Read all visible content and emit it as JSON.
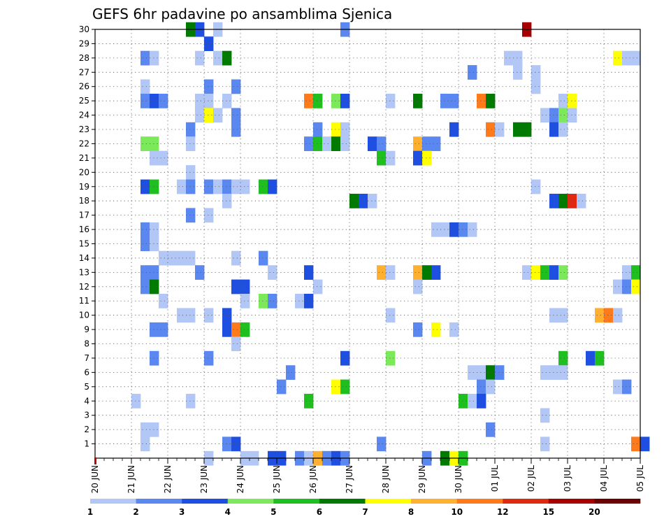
{
  "chart_data": {
    "type": "heatmap",
    "title": "GEFS 6hr padavine po ansamblima Sjenica",
    "xlabel": "",
    "ylabel": "",
    "x_tick_labels": [
      "20 JUN",
      "21 JUN",
      "22 JUN",
      "23 JUN",
      "24 JUN",
      "25 JUN",
      "26 JUN",
      "27 JUN",
      "28 JUN",
      "29 JUN",
      "30 JUN",
      "01 JUL",
      "02 JUL",
      "03 JUL",
      "04 JUL",
      "05 JUL"
    ],
    "y_tick_labels": [
      "1",
      "2",
      "3",
      "4",
      "5",
      "6",
      "7",
      "8",
      "9",
      "10",
      "11",
      "12",
      "13",
      "14",
      "15",
      "16",
      "17",
      "18",
      "19",
      "20",
      "21",
      "22",
      "23",
      "24",
      "25",
      "26",
      "27",
      "28",
      "29",
      "30"
    ],
    "grid": true,
    "colorbar": {
      "labels": [
        "1",
        "2",
        "3",
        "4",
        "5",
        "6",
        "7",
        "8",
        "10",
        "12",
        "15",
        "20"
      ],
      "colors": [
        "#b3c7f7",
        "#5b87f0",
        "#1f4fe0",
        "#7ce95a",
        "#1fbf1f",
        "#007a00",
        "#ffff00",
        "#ffb030",
        "#ff7a1a",
        "#e02a10",
        "#a80000",
        "#6e0000"
      ]
    },
    "cells_note": "cells given as [x_day_offset_from_20JUN, member, class_index]",
    "cells": [
      [
        2.5,
        30,
        5
      ],
      [
        2.75,
        30,
        2
      ],
      [
        3.25,
        30,
        0
      ],
      [
        6.75,
        30,
        1
      ],
      [
        11.75,
        30,
        10
      ],
      [
        3,
        29,
        2
      ],
      [
        1.25,
        28,
        1
      ],
      [
        1.5,
        28,
        0
      ],
      [
        2.75,
        28,
        0
      ],
      [
        3.25,
        28,
        0
      ],
      [
        3.5,
        28,
        5
      ],
      [
        11.25,
        28,
        0
      ],
      [
        11.5,
        28,
        0
      ],
      [
        14.25,
        28,
        6
      ],
      [
        14.5,
        28,
        0
      ],
      [
        14.75,
        28,
        0
      ],
      [
        10.25,
        27,
        1
      ],
      [
        11.5,
        27,
        0
      ],
      [
        12,
        27,
        0
      ],
      [
        1.25,
        26,
        0
      ],
      [
        3,
        26,
        1
      ],
      [
        3.75,
        26,
        1
      ],
      [
        12,
        26,
        0
      ],
      [
        1.25,
        25,
        1
      ],
      [
        1.5,
        25,
        2
      ],
      [
        1.75,
        25,
        1
      ],
      [
        2.75,
        25,
        0
      ],
      [
        3,
        25,
        0
      ],
      [
        3.5,
        25,
        0
      ],
      [
        5.75,
        25,
        8
      ],
      [
        6,
        25,
        4
      ],
      [
        6.5,
        25,
        3
      ],
      [
        6.75,
        25,
        2
      ],
      [
        8,
        25,
        0
      ],
      [
        8.75,
        25,
        5
      ],
      [
        9.5,
        25,
        1
      ],
      [
        9.75,
        25,
        1
      ],
      [
        10.5,
        25,
        8
      ],
      [
        10.75,
        25,
        5
      ],
      [
        12.75,
        25,
        0
      ],
      [
        13,
        25,
        6
      ],
      [
        2.75,
        24,
        0
      ],
      [
        3,
        24,
        6
      ],
      [
        3.25,
        24,
        0
      ],
      [
        3.75,
        24,
        1
      ],
      [
        12.25,
        24,
        0
      ],
      [
        12.5,
        24,
        1
      ],
      [
        12.75,
        24,
        3
      ],
      [
        13,
        24,
        0
      ],
      [
        2.5,
        23,
        1
      ],
      [
        3.75,
        23,
        1
      ],
      [
        6,
        23,
        1
      ],
      [
        6.5,
        23,
        6
      ],
      [
        6.75,
        23,
        0
      ],
      [
        9.75,
        23,
        2
      ],
      [
        10.75,
        23,
        8
      ],
      [
        11,
        23,
        0
      ],
      [
        11.5,
        23,
        5
      ],
      [
        11.75,
        23,
        5
      ],
      [
        12.5,
        23,
        2
      ],
      [
        12.75,
        23,
        0
      ],
      [
        1.25,
        22,
        3
      ],
      [
        1.5,
        22,
        3
      ],
      [
        2.5,
        22,
        0
      ],
      [
        5.75,
        22,
        1
      ],
      [
        6,
        22,
        4
      ],
      [
        6.25,
        22,
        0
      ],
      [
        6.5,
        22,
        5
      ],
      [
        6.75,
        22,
        0
      ],
      [
        7.5,
        22,
        2
      ],
      [
        7.75,
        22,
        1
      ],
      [
        8.75,
        22,
        7
      ],
      [
        9,
        22,
        1
      ],
      [
        9.25,
        22,
        1
      ],
      [
        1.5,
        21,
        0
      ],
      [
        1.75,
        21,
        0
      ],
      [
        7.75,
        21,
        4
      ],
      [
        8,
        21,
        0
      ],
      [
        8.75,
        21,
        2
      ],
      [
        9,
        21,
        6
      ],
      [
        2.5,
        20,
        0
      ],
      [
        1.25,
        19,
        2
      ],
      [
        1.5,
        19,
        4
      ],
      [
        2.25,
        19,
        0
      ],
      [
        2.5,
        19,
        1
      ],
      [
        3,
        19,
        1
      ],
      [
        3.25,
        19,
        0
      ],
      [
        3.5,
        19,
        1
      ],
      [
        3.75,
        19,
        0
      ],
      [
        4,
        19,
        0
      ],
      [
        4.5,
        19,
        4
      ],
      [
        4.75,
        19,
        2
      ],
      [
        12,
        19,
        0
      ],
      [
        3.5,
        18,
        0
      ],
      [
        7,
        18,
        5
      ],
      [
        7.25,
        18,
        2
      ],
      [
        7.5,
        18,
        0
      ],
      [
        12.5,
        18,
        2
      ],
      [
        12.75,
        18,
        5
      ],
      [
        13,
        18,
        9
      ],
      [
        13.25,
        18,
        0
      ],
      [
        2.5,
        17,
        1
      ],
      [
        3,
        17,
        0
      ],
      [
        1.25,
        16,
        1
      ],
      [
        1.5,
        16,
        0
      ],
      [
        9.25,
        16,
        0
      ],
      [
        9.5,
        16,
        0
      ],
      [
        9.75,
        16,
        2
      ],
      [
        10,
        16,
        1
      ],
      [
        10.25,
        16,
        0
      ],
      [
        1.25,
        15,
        1
      ],
      [
        1.5,
        15,
        0
      ],
      [
        1.75,
        14,
        0
      ],
      [
        2,
        14,
        0
      ],
      [
        2.25,
        14,
        0
      ],
      [
        2.5,
        14,
        0
      ],
      [
        3.75,
        14,
        0
      ],
      [
        4.5,
        14,
        1
      ],
      [
        1.25,
        13,
        1
      ],
      [
        1.5,
        13,
        1
      ],
      [
        2.75,
        13,
        1
      ],
      [
        4.75,
        13,
        0
      ],
      [
        5.75,
        13,
        2
      ],
      [
        7.75,
        13,
        7
      ],
      [
        8,
        13,
        0
      ],
      [
        8.75,
        13,
        7
      ],
      [
        9,
        13,
        5
      ],
      [
        9.25,
        13,
        2
      ],
      [
        11.75,
        13,
        0
      ],
      [
        12,
        13,
        6
      ],
      [
        12.25,
        13,
        4
      ],
      [
        12.5,
        13,
        2
      ],
      [
        12.75,
        13,
        3
      ],
      [
        14.5,
        13,
        0
      ],
      [
        14.75,
        13,
        4
      ],
      [
        1.25,
        12,
        1
      ],
      [
        1.5,
        12,
        5
      ],
      [
        3.75,
        12,
        2
      ],
      [
        4,
        12,
        2
      ],
      [
        6,
        12,
        0
      ],
      [
        8.75,
        12,
        0
      ],
      [
        14.25,
        12,
        0
      ],
      [
        14.5,
        12,
        1
      ],
      [
        14.75,
        12,
        6
      ],
      [
        1.75,
        11,
        0
      ],
      [
        4,
        11,
        0
      ],
      [
        4.5,
        11,
        3
      ],
      [
        4.75,
        11,
        1
      ],
      [
        5.5,
        11,
        0
      ],
      [
        5.75,
        11,
        2
      ],
      [
        2.25,
        10,
        0
      ],
      [
        2.5,
        10,
        0
      ],
      [
        3,
        10,
        0
      ],
      [
        3.5,
        10,
        2
      ],
      [
        8,
        10,
        0
      ],
      [
        12.5,
        10,
        0
      ],
      [
        12.75,
        10,
        0
      ],
      [
        13.75,
        10,
        7
      ],
      [
        14,
        10,
        8
      ],
      [
        14.25,
        10,
        0
      ],
      [
        1.5,
        9,
        1
      ],
      [
        1.75,
        9,
        1
      ],
      [
        3.5,
        9,
        2
      ],
      [
        3.75,
        9,
        8
      ],
      [
        4,
        9,
        4
      ],
      [
        8.75,
        9,
        1
      ],
      [
        9.25,
        9,
        6
      ],
      [
        9.75,
        9,
        0
      ],
      [
        3.75,
        8,
        0
      ],
      [
        1.5,
        7,
        1
      ],
      [
        3,
        7,
        1
      ],
      [
        6.75,
        7,
        2
      ],
      [
        8,
        7,
        3
      ],
      [
        12.75,
        7,
        4
      ],
      [
        13.5,
        7,
        2
      ],
      [
        13.75,
        7,
        4
      ],
      [
        5.25,
        6,
        1
      ],
      [
        10.25,
        6,
        0
      ],
      [
        10.5,
        6,
        0
      ],
      [
        10.75,
        6,
        5
      ],
      [
        11,
        6,
        1
      ],
      [
        12.25,
        6,
        0
      ],
      [
        12.5,
        6,
        0
      ],
      [
        12.75,
        6,
        0
      ],
      [
        5,
        5,
        1
      ],
      [
        6.5,
        5,
        6
      ],
      [
        6.75,
        5,
        4
      ],
      [
        10.5,
        5,
        1
      ],
      [
        10.75,
        5,
        0
      ],
      [
        14.25,
        5,
        0
      ],
      [
        14.5,
        5,
        1
      ],
      [
        1,
        4,
        0
      ],
      [
        2.5,
        4,
        0
      ],
      [
        5.75,
        4,
        4
      ],
      [
        10,
        4,
        4
      ],
      [
        10.25,
        4,
        0
      ],
      [
        10.5,
        4,
        2
      ],
      [
        12.25,
        3,
        0
      ],
      [
        1.25,
        2,
        0
      ],
      [
        1.5,
        2,
        0
      ],
      [
        10.75,
        2,
        1
      ],
      [
        1.25,
        1,
        0
      ],
      [
        3.5,
        1,
        1
      ],
      [
        3.75,
        1,
        2
      ],
      [
        7.75,
        1,
        1
      ],
      [
        12.25,
        1,
        0
      ],
      [
        14.75,
        1,
        8
      ],
      [
        15,
        1,
        2
      ],
      [
        3,
        0,
        0
      ],
      [
        4,
        0,
        0
      ],
      [
        4.25,
        0,
        0
      ],
      [
        4.75,
        0,
        2
      ],
      [
        5,
        0,
        2
      ],
      [
        5.5,
        0,
        1
      ],
      [
        5.75,
        0,
        0
      ],
      [
        6,
        0,
        7
      ],
      [
        6.25,
        0,
        1
      ],
      [
        6.5,
        0,
        2
      ],
      [
        6.75,
        0,
        1
      ],
      [
        9,
        0,
        1
      ],
      [
        9.5,
        0,
        5
      ],
      [
        9.75,
        0,
        6
      ],
      [
        10,
        0,
        4
      ]
    ]
  }
}
